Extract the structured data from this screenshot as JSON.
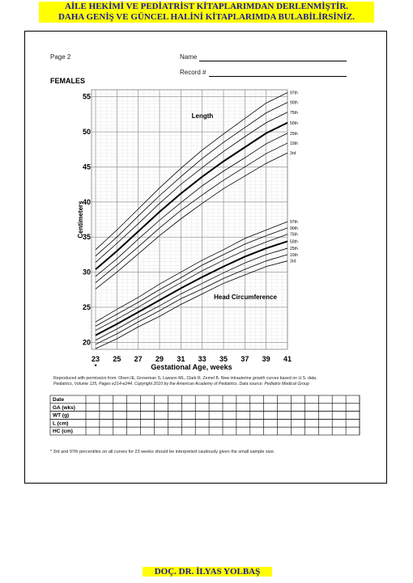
{
  "banner": {
    "line1": "AİLE HEKİMİ VE PEDİATRİST KİTAPLARIMDAN DERLENMİŞTİR.",
    "line2": "DAHA GENİŞ VE GÜNCEL HALİNİ KİTAPLARIMDA BULABİLİRSİNİZ."
  },
  "form": {
    "page": "Page 2",
    "name": "Name",
    "record": "Record #",
    "section": "FEMALES"
  },
  "chart_data": {
    "type": "line",
    "x": [
      23,
      25,
      27,
      29,
      31,
      33,
      35,
      37,
      39,
      41
    ],
    "xlim": [
      23,
      41
    ],
    "xticks": [
      23,
      25,
      27,
      29,
      31,
      33,
      35,
      37,
      39,
      41
    ],
    "ylim": [
      19,
      56
    ],
    "yticks": [
      20,
      25,
      30,
      35,
      40,
      45,
      50,
      55
    ],
    "xlabel": "Gestational Age, weeks",
    "ylabel": "Centimeters",
    "x_note": "*",
    "annotations": [
      "Length",
      "Head Circumference"
    ],
    "grid": true,
    "series": [
      {
        "name": "97th",
        "color": "#000000",
        "width": 0.8,
        "values": [
          33.2,
          36.0,
          39.0,
          42.0,
          44.8,
          47.4,
          49.7,
          51.9,
          54.1,
          55.6
        ]
      },
      {
        "name": "90th",
        "color": "#000000",
        "width": 0.8,
        "values": [
          32.3,
          35.0,
          38.0,
          40.9,
          43.6,
          46.2,
          48.5,
          50.6,
          52.7,
          54.2
        ]
      },
      {
        "name": "75th",
        "color": "#000000",
        "width": 0.8,
        "values": [
          31.4,
          34.1,
          36.9,
          39.8,
          42.5,
          44.9,
          47.2,
          49.3,
          51.3,
          52.8
        ]
      },
      {
        "name": "50th",
        "color": "#000000",
        "width": 2,
        "values": [
          30.4,
          33.0,
          35.8,
          38.6,
          41.2,
          43.6,
          45.8,
          47.8,
          49.8,
          51.3
        ]
      },
      {
        "name": "25th",
        "color": "#000000",
        "width": 0.8,
        "values": [
          29.4,
          31.9,
          34.7,
          37.4,
          39.9,
          42.3,
          44.4,
          46.3,
          48.3,
          49.8
        ]
      },
      {
        "name": "10th",
        "color": "#000000",
        "width": 0.8,
        "values": [
          28.5,
          31.0,
          33.6,
          36.3,
          38.8,
          41.0,
          43.1,
          45.0,
          46.9,
          48.4
        ]
      },
      {
        "name": "3rd",
        "color": "#000000",
        "width": 0.8,
        "values": [
          27.6,
          30.0,
          32.6,
          35.2,
          37.6,
          39.8,
          41.9,
          43.7,
          45.5,
          47.0
        ]
      },
      {
        "name": "97th",
        "color": "#000000",
        "width": 0.8,
        "values": [
          22.9,
          24.7,
          26.4,
          28.3,
          30.0,
          31.7,
          33.2,
          34.8,
          36.0,
          37.2
        ]
      },
      {
        "name": "90th",
        "color": "#000000",
        "width": 0.8,
        "values": [
          22.3,
          24.0,
          25.7,
          27.5,
          29.2,
          31.0,
          32.5,
          34.0,
          35.2,
          36.3
        ]
      },
      {
        "name": "75th",
        "color": "#000000",
        "width": 0.8,
        "values": [
          21.7,
          23.3,
          25.0,
          26.8,
          28.5,
          30.2,
          31.7,
          33.1,
          34.3,
          35.4
        ]
      },
      {
        "name": "50th",
        "color": "#000000",
        "width": 2,
        "values": [
          21.0,
          22.6,
          24.3,
          26.0,
          27.7,
          29.3,
          30.8,
          32.2,
          33.4,
          34.4
        ]
      },
      {
        "name": "25th",
        "color": "#000000",
        "width": 0.8,
        "values": [
          20.3,
          21.9,
          23.6,
          25.2,
          26.9,
          28.4,
          29.9,
          31.3,
          32.5,
          33.4
        ]
      },
      {
        "name": "10th",
        "color": "#000000",
        "width": 0.8,
        "values": [
          19.7,
          21.2,
          22.9,
          24.5,
          26.2,
          27.6,
          29.1,
          30.4,
          31.6,
          32.5
        ]
      },
      {
        "name": "3rd",
        "color": "#000000",
        "width": 0.8,
        "values": [
          19.1,
          20.5,
          22.2,
          23.7,
          25.4,
          26.9,
          28.4,
          29.6,
          30.8,
          31.6
        ]
      }
    ]
  },
  "source": {
    "line1": "Reproduced with permission from: Olsen IE, Groveman S, Lawson ML, Clark R, Zemel B. New intrauterine growth curves based on U.S. data.",
    "line2": "Pediatrics, Volume 125, Pages e214-e244. Copyright 2010 by the American Academy of Pediatrics.  Data source: Pediatrix Medical Group"
  },
  "table": {
    "rows": [
      "Date",
      "GA (wks)",
      "WT (g)",
      "L (cm)",
      "HC (cm)"
    ]
  },
  "footnote": "* 3rd and 97th percentiles on all curves for 23 weeks should be interpreted cautiously given the small sample size.",
  "footer": "DOÇ. DR. İLYAS YOLBAŞ"
}
